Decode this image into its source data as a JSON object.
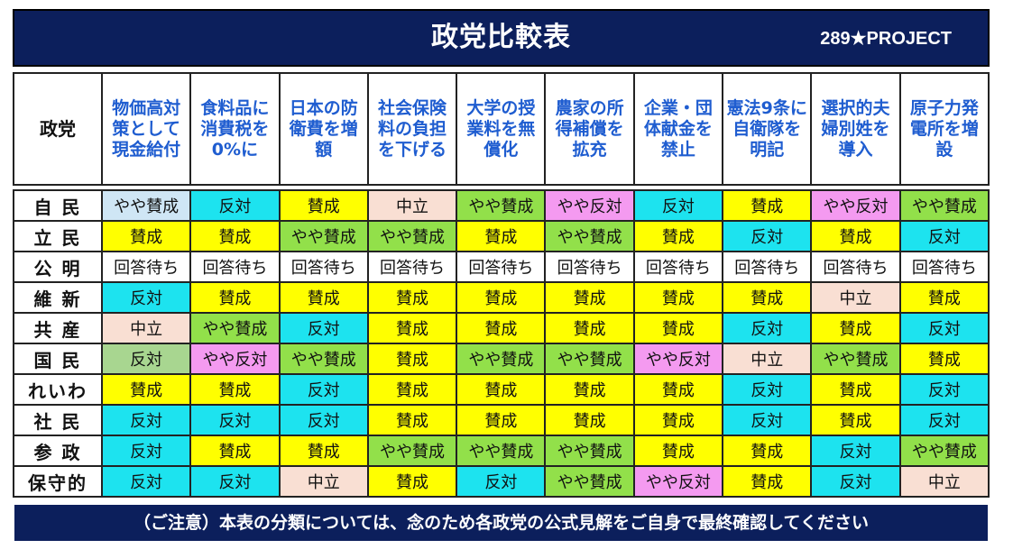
{
  "header": {
    "title": "政党比較表",
    "brand": "289★PROJECT"
  },
  "corner_label": "政党",
  "columns": [
    "物価高対策として現金給付",
    "食料品に消費税を0%に",
    "日本の防衛費を増　額",
    "社会保険料の負担を下げる",
    "大学の授業料を無償化",
    "農家の所得補償を拡充",
    "企業・団体献金を禁止",
    "憲法9条に自衛隊を明記",
    "選択的夫婦別姓を導入",
    "原子力発電所を増設"
  ],
  "status_colors": {
    "賛成": "#ffff00",
    "やや賛成": "#92e04a",
    "中立": "#f9dfd3",
    "やや反対": "#f49af0",
    "反対": "#1de3ef",
    "回答待ち": "#ffffff",
    "反対(弱)": "#a8d690",
    "やや賛成(弱)": "#cfe6f5"
  },
  "rows": [
    {
      "party": "自 民",
      "cells": [
        {
          "t": "やや賛成",
          "c": "#cfe6f5"
        },
        {
          "t": "反対",
          "c": "#1de3ef"
        },
        {
          "t": "賛成",
          "c": "#ffff00"
        },
        {
          "t": "中立",
          "c": "#f9dfd3"
        },
        {
          "t": "やや賛成",
          "c": "#92e04a"
        },
        {
          "t": "やや反対",
          "c": "#f49af0"
        },
        {
          "t": "反対",
          "c": "#1de3ef"
        },
        {
          "t": "賛成",
          "c": "#ffff00"
        },
        {
          "t": "やや反対",
          "c": "#f49af0"
        },
        {
          "t": "やや賛成",
          "c": "#92e04a"
        }
      ]
    },
    {
      "party": "立 民",
      "cells": [
        {
          "t": "賛成",
          "c": "#ffff00"
        },
        {
          "t": "賛成",
          "c": "#ffff00"
        },
        {
          "t": "やや賛成",
          "c": "#92e04a"
        },
        {
          "t": "やや賛成",
          "c": "#92e04a"
        },
        {
          "t": "賛成",
          "c": "#ffff00"
        },
        {
          "t": "やや賛成",
          "c": "#92e04a"
        },
        {
          "t": "賛成",
          "c": "#ffff00"
        },
        {
          "t": "反対",
          "c": "#1de3ef"
        },
        {
          "t": "賛成",
          "c": "#ffff00"
        },
        {
          "t": "反対",
          "c": "#1de3ef"
        }
      ]
    },
    {
      "party": "公 明",
      "cells": [
        {
          "t": "回答待ち",
          "c": "#ffffff"
        },
        {
          "t": "回答待ち",
          "c": "#ffffff"
        },
        {
          "t": "回答待ち",
          "c": "#ffffff"
        },
        {
          "t": "回答待ち",
          "c": "#ffffff"
        },
        {
          "t": "回答待ち",
          "c": "#ffffff"
        },
        {
          "t": "回答待ち",
          "c": "#ffffff"
        },
        {
          "t": "回答待ち",
          "c": "#ffffff"
        },
        {
          "t": "回答待ち",
          "c": "#ffffff"
        },
        {
          "t": "回答待ち",
          "c": "#ffffff"
        },
        {
          "t": "回答待ち",
          "c": "#ffffff"
        }
      ]
    },
    {
      "party": "維 新",
      "cells": [
        {
          "t": "反対",
          "c": "#1de3ef"
        },
        {
          "t": "賛成",
          "c": "#ffff00"
        },
        {
          "t": "賛成",
          "c": "#ffff00"
        },
        {
          "t": "賛成",
          "c": "#ffff00"
        },
        {
          "t": "賛成",
          "c": "#ffff00"
        },
        {
          "t": "賛成",
          "c": "#ffff00"
        },
        {
          "t": "賛成",
          "c": "#ffff00"
        },
        {
          "t": "賛成",
          "c": "#ffff00"
        },
        {
          "t": "中立",
          "c": "#f9dfd3"
        },
        {
          "t": "賛成",
          "c": "#ffff00"
        }
      ]
    },
    {
      "party": "共 産",
      "cells": [
        {
          "t": "中立",
          "c": "#f9dfd3"
        },
        {
          "t": "やや賛成",
          "c": "#92e04a"
        },
        {
          "t": "反対",
          "c": "#1de3ef"
        },
        {
          "t": "賛成",
          "c": "#ffff00"
        },
        {
          "t": "賛成",
          "c": "#ffff00"
        },
        {
          "t": "賛成",
          "c": "#ffff00"
        },
        {
          "t": "賛成",
          "c": "#ffff00"
        },
        {
          "t": "反対",
          "c": "#1de3ef"
        },
        {
          "t": "賛成",
          "c": "#ffff00"
        },
        {
          "t": "反対",
          "c": "#1de3ef"
        }
      ]
    },
    {
      "party": "国 民",
      "cells": [
        {
          "t": "反対",
          "c": "#a8d690"
        },
        {
          "t": "やや反対",
          "c": "#f49af0"
        },
        {
          "t": "やや賛成",
          "c": "#92e04a"
        },
        {
          "t": "賛成",
          "c": "#ffff00"
        },
        {
          "t": "やや賛成",
          "c": "#92e04a"
        },
        {
          "t": "やや賛成",
          "c": "#92e04a"
        },
        {
          "t": "やや反対",
          "c": "#f49af0"
        },
        {
          "t": "中立",
          "c": "#f9dfd3"
        },
        {
          "t": "やや賛成",
          "c": "#92e04a"
        },
        {
          "t": "賛成",
          "c": "#ffff00"
        }
      ]
    },
    {
      "party": "れいわ",
      "cells": [
        {
          "t": "賛成",
          "c": "#ffff00"
        },
        {
          "t": "賛成",
          "c": "#ffff00"
        },
        {
          "t": "反対",
          "c": "#1de3ef"
        },
        {
          "t": "賛成",
          "c": "#ffff00"
        },
        {
          "t": "賛成",
          "c": "#ffff00"
        },
        {
          "t": "賛成",
          "c": "#ffff00"
        },
        {
          "t": "賛成",
          "c": "#ffff00"
        },
        {
          "t": "反対",
          "c": "#1de3ef"
        },
        {
          "t": "賛成",
          "c": "#ffff00"
        },
        {
          "t": "反対",
          "c": "#1de3ef"
        }
      ]
    },
    {
      "party": "社 民",
      "cells": [
        {
          "t": "反対",
          "c": "#1de3ef"
        },
        {
          "t": "反対",
          "c": "#1de3ef"
        },
        {
          "t": "反対",
          "c": "#1de3ef"
        },
        {
          "t": "賛成",
          "c": "#ffff00"
        },
        {
          "t": "賛成",
          "c": "#ffff00"
        },
        {
          "t": "賛成",
          "c": "#ffff00"
        },
        {
          "t": "賛成",
          "c": "#ffff00"
        },
        {
          "t": "反対",
          "c": "#1de3ef"
        },
        {
          "t": "賛成",
          "c": "#ffff00"
        },
        {
          "t": "反対",
          "c": "#1de3ef"
        }
      ]
    },
    {
      "party": "参 政",
      "cells": [
        {
          "t": "反対",
          "c": "#1de3ef"
        },
        {
          "t": "賛成",
          "c": "#ffff00"
        },
        {
          "t": "賛成",
          "c": "#ffff00"
        },
        {
          "t": "やや賛成",
          "c": "#92e04a"
        },
        {
          "t": "やや賛成",
          "c": "#92e04a"
        },
        {
          "t": "やや賛成",
          "c": "#92e04a"
        },
        {
          "t": "賛成",
          "c": "#ffff00"
        },
        {
          "t": "賛成",
          "c": "#ffff00"
        },
        {
          "t": "反対",
          "c": "#1de3ef"
        },
        {
          "t": "やや賛成",
          "c": "#92e04a"
        }
      ]
    },
    {
      "party": "保守的",
      "cells": [
        {
          "t": "反対",
          "c": "#1de3ef"
        },
        {
          "t": "反対",
          "c": "#1de3ef"
        },
        {
          "t": "中立",
          "c": "#f9dfd3"
        },
        {
          "t": "賛成",
          "c": "#ffff00"
        },
        {
          "t": "反対",
          "c": "#1de3ef"
        },
        {
          "t": "やや賛成",
          "c": "#92e04a"
        },
        {
          "t": "やや反対",
          "c": "#f49af0"
        },
        {
          "t": "賛成",
          "c": "#ffff00"
        },
        {
          "t": "反対",
          "c": "#1de3ef"
        },
        {
          "t": "中立",
          "c": "#f9dfd3"
        }
      ]
    }
  ],
  "footer": "（ご注意）本表の分類については、念のため各政党の公式見解をご自身で最終確認してください"
}
